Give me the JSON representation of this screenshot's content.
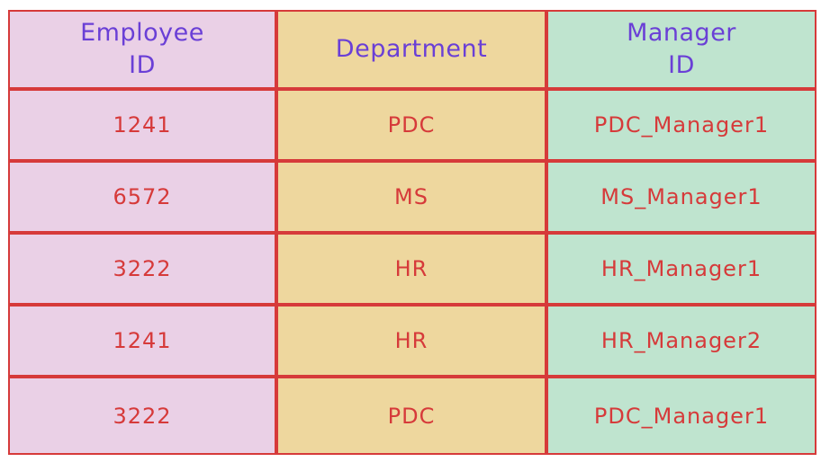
{
  "columns": [
    {
      "label": "Employee\nID"
    },
    {
      "label": "Department"
    },
    {
      "label": "Manager\nID"
    }
  ],
  "rows": [
    {
      "employee_id": "1241",
      "department": "PDC",
      "manager_id": "PDC_Manager1"
    },
    {
      "employee_id": "6572",
      "department": "MS",
      "manager_id": "MS_Manager1"
    },
    {
      "employee_id": "3222",
      "department": "HR",
      "manager_id": "HR_Manager1"
    },
    {
      "employee_id": "1241",
      "department": "HR",
      "manager_id": "HR_Manager2"
    },
    {
      "employee_id": "3222",
      "department": "PDC",
      "manager_id": "PDC_Manager1"
    }
  ],
  "colors": {
    "border": "#d63a3a",
    "header_text": "#6a3fd6",
    "value_text": "#d63a3a",
    "employee_column": "#ead0e6",
    "department_column": "#eed79e",
    "manager_column": "#bfe4cf"
  }
}
